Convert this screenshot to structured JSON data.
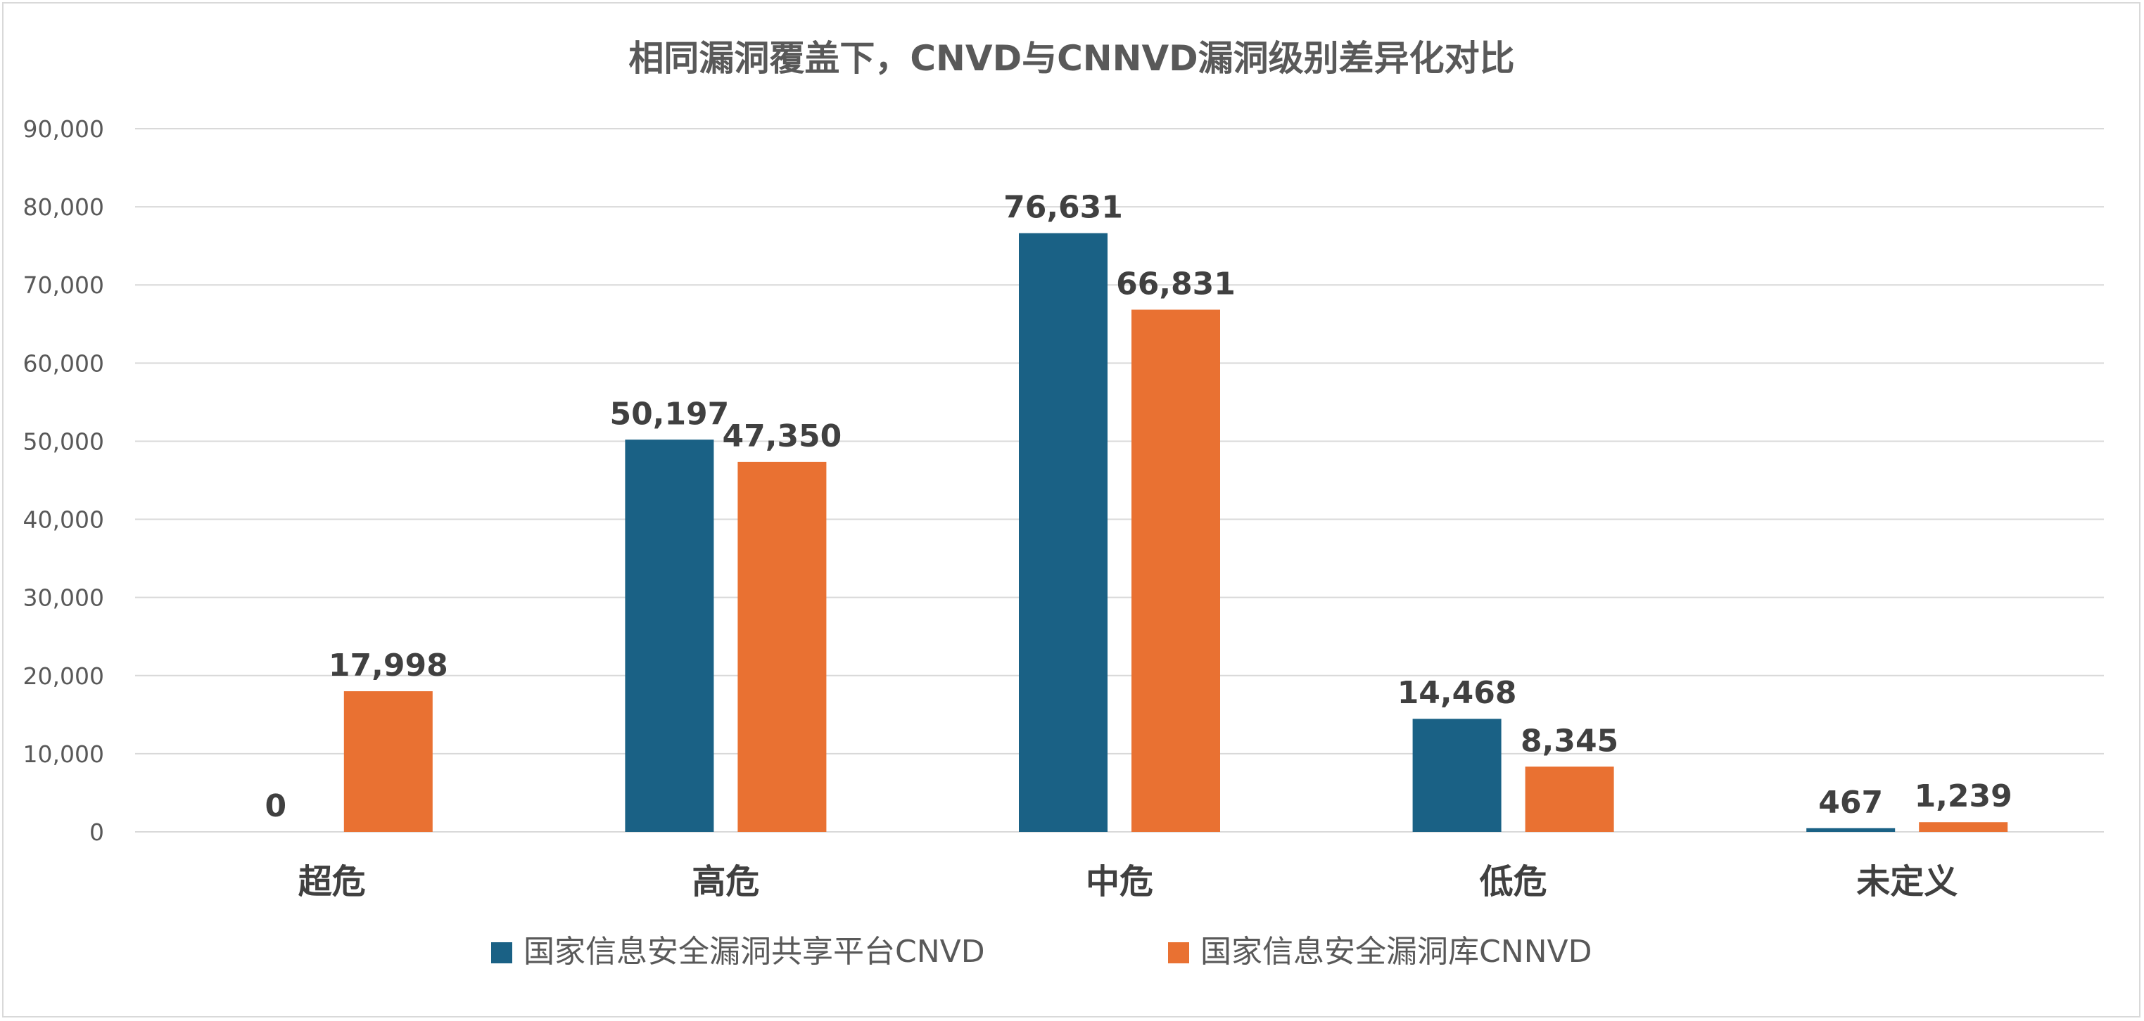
{
  "chart_data": {
    "type": "bar",
    "title": "相同漏洞覆盖下，CNVD与CNNVD漏洞级别差异化对比",
    "categories": [
      "超危",
      "高危",
      "中危",
      "低危",
      "未定义"
    ],
    "series": [
      {
        "name": "国家信息安全漏洞共享平台CNVD",
        "color": "#1a6185",
        "values": [
          0,
          50197,
          76631,
          14468,
          467
        ],
        "labels": [
          "0",
          "50,197",
          "76,631",
          "14,468",
          "467"
        ]
      },
      {
        "name": "国家信息安全漏洞库CNNVD",
        "color": "#e97132",
        "values": [
          17998,
          47350,
          66831,
          8345,
          1239
        ],
        "labels": [
          "17,998",
          "47,350",
          "66,831",
          "8,345",
          "1,239"
        ]
      }
    ],
    "ylim": [
      0,
      90000
    ],
    "yticks": [
      0,
      10000,
      20000,
      30000,
      40000,
      50000,
      60000,
      70000,
      80000,
      90000
    ],
    "ytick_labels": [
      "0",
      "10,000",
      "20,000",
      "30,000",
      "40,000",
      "50,000",
      "60,000",
      "70,000",
      "80,000",
      "90,000"
    ],
    "xlabel": "",
    "ylabel": "",
    "grid": true,
    "legend_position": "bottom"
  }
}
